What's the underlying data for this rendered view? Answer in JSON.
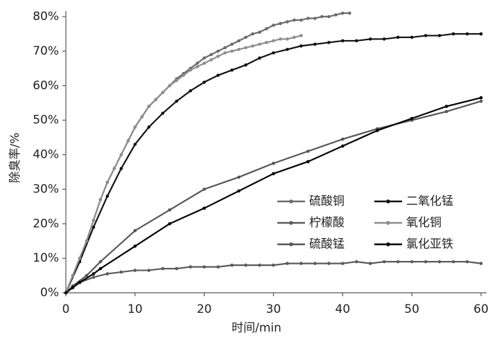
{
  "chart_data": {
    "type": "line",
    "x_label": "时间/min",
    "y_label": "除臭率/%",
    "xlim": [
      0,
      60
    ],
    "xticks": [
      0,
      10,
      20,
      30,
      40,
      50,
      60
    ],
    "ylim": [
      0,
      80
    ],
    "yticks": [
      {
        "value": 0,
        "label": "0%"
      },
      {
        "value": 10,
        "label": "10%"
      },
      {
        "value": 20,
        "label": "20%"
      },
      {
        "value": 30,
        "label": "30%"
      },
      {
        "value": 40,
        "label": "40%"
      },
      {
        "value": 50,
        "label": "50%"
      },
      {
        "value": 60,
        "label": "60%"
      },
      {
        "value": 70,
        "label": "70%"
      },
      {
        "value": 80,
        "label": "80%"
      }
    ],
    "grid": false,
    "series": [
      {
        "name": "硫酸铜",
        "color": "#6b6b6b",
        "x": [
          0,
          1,
          2,
          3,
          4,
          5,
          6,
          7,
          8,
          9,
          10,
          11,
          12,
          13,
          14,
          15,
          16,
          17,
          18,
          19,
          20,
          21,
          22,
          23,
          24,
          25,
          26,
          27,
          28,
          29,
          30,
          31,
          32,
          33,
          34,
          35,
          36,
          37,
          38,
          39,
          40,
          41
        ],
        "values": [
          0,
          5,
          10,
          15,
          21,
          27,
          32,
          36,
          40,
          44,
          48,
          51,
          54,
          56,
          58,
          60,
          62,
          63.5,
          65,
          66.5,
          68,
          69,
          70,
          71,
          72,
          73,
          74,
          75,
          75.5,
          76.5,
          77.5,
          78,
          78.5,
          79,
          79,
          79.5,
          79.5,
          80,
          80,
          80.5,
          81,
          81
        ]
      },
      {
        "name": "柠檬酸",
        "color": "#5a5a5a",
        "x": [
          0,
          2,
          4,
          6,
          8,
          10,
          12,
          14,
          16,
          18,
          20,
          22,
          24,
          26,
          28,
          30,
          32,
          34,
          36,
          38,
          40,
          42,
          44,
          46,
          48,
          50,
          52,
          54,
          56,
          58,
          60
        ],
        "values": [
          0,
          3,
          4.5,
          5.5,
          6,
          6.5,
          6.5,
          7,
          7,
          7.5,
          7.5,
          7.5,
          8,
          8,
          8,
          8,
          8.5,
          8.5,
          8.5,
          8.5,
          8.5,
          9,
          8.5,
          9,
          9,
          9,
          9,
          9,
          9,
          9,
          8.5
        ]
      },
      {
        "name": "硫酸锰",
        "color": "#555555",
        "x": [
          0,
          1,
          3,
          5,
          10,
          15,
          20,
          25,
          30,
          35,
          40,
          45,
          50,
          55,
          60
        ],
        "values": [
          0,
          2,
          5,
          9,
          18,
          24,
          30,
          33.5,
          37.5,
          41,
          44.5,
          47.5,
          50,
          52.5,
          55.5
        ]
      },
      {
        "name": "二氧化锰",
        "color": "#111111",
        "x": [
          0,
          2,
          4,
          6,
          8,
          10,
          12,
          14,
          16,
          18,
          20,
          22,
          24,
          26,
          28,
          30,
          32,
          34,
          36,
          38,
          40,
          42,
          44,
          46,
          48,
          50,
          52,
          54,
          56,
          58,
          60
        ],
        "values": [
          0,
          9,
          19,
          28,
          36,
          43,
          48,
          52,
          55.5,
          58.5,
          61,
          63,
          64.5,
          66,
          68,
          69.5,
          70.5,
          71.5,
          72,
          72.5,
          73,
          73,
          73.5,
          73.5,
          74,
          74,
          74.5,
          74.5,
          75,
          75,
          75
        ]
      },
      {
        "name": "氧化铜",
        "color": "#8c8c8c",
        "x": [
          0,
          1,
          2,
          3,
          4,
          5,
          6,
          7,
          8,
          9,
          10,
          11,
          12,
          13,
          14,
          15,
          16,
          17,
          18,
          19,
          20,
          21,
          22,
          23,
          24,
          25,
          26,
          27,
          28,
          29,
          30,
          31,
          32,
          33,
          34
        ],
        "values": [
          0,
          5,
          10,
          15,
          21,
          27,
          32,
          36,
          40,
          44,
          48,
          51,
          54,
          56,
          58,
          60,
          61.5,
          63,
          64.5,
          65.5,
          66.5,
          67.5,
          68.5,
          69.5,
          70,
          70.5,
          71,
          71.5,
          72,
          72.5,
          73,
          73.5,
          73.5,
          74,
          74.5
        ]
      },
      {
        "name": "氯化亚铁",
        "color": "#000000",
        "x": [
          0,
          1,
          2,
          4,
          5,
          10,
          15,
          20,
          25,
          30,
          35,
          40,
          45,
          50,
          55,
          60
        ],
        "values": [
          0,
          1.5,
          3,
          5.5,
          7,
          13.5,
          20,
          24.5,
          29.5,
          34.5,
          38,
          42.5,
          47,
          50.5,
          54,
          56.5
        ]
      }
    ]
  }
}
